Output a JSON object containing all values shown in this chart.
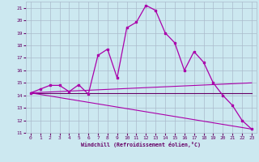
{
  "xlabel": "Windchill (Refroidissement éolien,°C)",
  "background_color": "#cce8f0",
  "grid_color": "#aabbcc",
  "line_color": "#aa00aa",
  "line_color2": "#660066",
  "xlim": [
    -0.5,
    23.5
  ],
  "ylim": [
    11,
    21.5
  ],
  "yticks": [
    11,
    12,
    13,
    14,
    15,
    16,
    17,
    18,
    19,
    20,
    21
  ],
  "xticks": [
    0,
    1,
    2,
    3,
    4,
    5,
    6,
    7,
    8,
    9,
    10,
    11,
    12,
    13,
    14,
    15,
    16,
    17,
    18,
    19,
    20,
    21,
    22,
    23
  ],
  "series1_x": [
    0,
    1,
    2,
    3,
    4,
    5,
    6,
    7,
    8,
    9,
    10,
    11,
    12,
    13,
    14,
    15,
    16,
    17,
    18,
    19,
    20,
    21,
    22,
    23
  ],
  "series1_y": [
    14.2,
    14.5,
    14.8,
    14.8,
    14.3,
    14.85,
    14.1,
    17.2,
    17.7,
    15.4,
    19.4,
    19.85,
    21.2,
    20.8,
    19.0,
    18.2,
    16.0,
    17.5,
    16.65,
    15.0,
    14.0,
    13.2,
    12.0,
    11.3
  ],
  "series2_x": [
    0,
    23
  ],
  "series2_y": [
    14.2,
    14.2
  ],
  "series3_x": [
    0,
    23
  ],
  "series3_y": [
    14.2,
    11.3
  ],
  "series4_x": [
    0,
    23
  ],
  "series4_y": [
    14.2,
    15.0
  ]
}
